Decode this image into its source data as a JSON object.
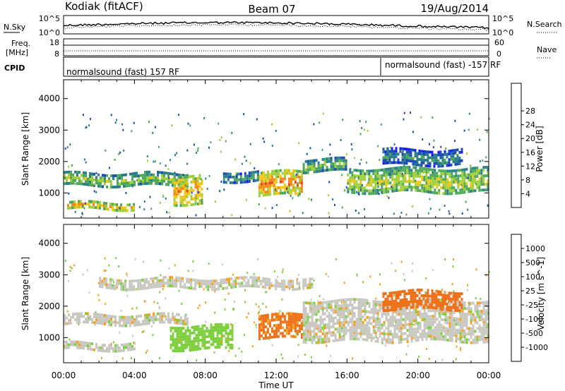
{
  "header": {
    "station": "Kodiak (fitACF)",
    "beam": "Beam 07",
    "date": "19/Aug/2014"
  },
  "top_panels": {
    "nsky_label": "N.Sky",
    "nsky_ticks": [
      "10^5",
      "10^0"
    ],
    "nsearch_label": "N.Search",
    "freq_label_1": "Freq.",
    "freq_label_2": "[MHz]",
    "freq_ticks": [
      "18",
      "8"
    ],
    "nave_label": "Nave",
    "nave_ticks": [
      "60",
      "0"
    ],
    "cpid_label": "CPID",
    "cpid_segments": [
      {
        "text": "normalsound (fast) 157 RF",
        "start_hour": 0
      },
      {
        "text": "normalsound (fast) -157 RF",
        "start_hour": 17.9
      }
    ]
  },
  "chart_data": [
    {
      "type": "heatmap",
      "title": "",
      "ylabel": "Slant Range [km]",
      "xlabel": "",
      "xlim": [
        0,
        24
      ],
      "ylim": [
        200,
        4600
      ],
      "y_ticks": [
        "1000",
        "2000",
        "3000",
        "4000"
      ],
      "colorbar_label": "Power [dB]",
      "colorbar_ticks": [
        "4",
        "8",
        "12",
        "16",
        "20",
        "24",
        "28"
      ],
      "colorbar_colors": [
        "#1a1aff",
        "#1f4bb8",
        "#2a7f8a",
        "#4da85a",
        "#9fcf3a",
        "#f5c518",
        "#f08b1a",
        "#e8461a",
        "#e01010"
      ],
      "bands": [
        {
          "t0": 0.2,
          "t1": 4.0,
          "r": [
            520,
            720
          ],
          "value": 24
        },
        {
          "t0": 0.0,
          "t1": 7.0,
          "r": [
            1250,
            1650
          ],
          "value": 18
        },
        {
          "t0": 6.2,
          "t1": 7.8,
          "r": [
            700,
            1600
          ],
          "value": 25
        },
        {
          "t0": 11.0,
          "t1": 13.5,
          "r": [
            950,
            1700
          ],
          "value": 26
        },
        {
          "t0": 9.0,
          "t1": 11.0,
          "r": [
            1400,
            1700
          ],
          "value": 14
        },
        {
          "t0": 13.5,
          "t1": 16.0,
          "r": [
            1700,
            2100
          ],
          "value": 17
        },
        {
          "t0": 16.0,
          "t1": 24.0,
          "r": [
            1000,
            1800
          ],
          "value": 20
        },
        {
          "t0": 18.0,
          "t1": 22.5,
          "r": [
            1900,
            2400
          ],
          "value": 12
        }
      ]
    },
    {
      "type": "heatmap",
      "title": "",
      "ylabel": "Slant Range [km]",
      "xlabel": "Time UT",
      "xlim": [
        0,
        24
      ],
      "ylim": [
        200,
        4600
      ],
      "x_ticks": [
        "00:00",
        "04:00",
        "08:00",
        "12:00",
        "16:00",
        "20:00",
        "00:00"
      ],
      "y_ticks": [
        "1000",
        "2000",
        "3000",
        "4000"
      ],
      "colorbar_label": "Velocity [m s^-1]",
      "colorbar_ticks": [
        "1000",
        "500",
        "100",
        "25",
        "-25",
        "-100",
        "-500",
        "-1000"
      ],
      "colorbar_colors": [
        "#2030c0",
        "#2a7f6a",
        "#3da34a",
        "#7fd040",
        "#c8c8c0",
        "#f5a020",
        "#f07018",
        "#e84010",
        "#e01010"
      ],
      "bands": [
        {
          "t0": 0.0,
          "t1": 7.0,
          "r": [
            1400,
            1750
          ],
          "value": 0
        },
        {
          "t0": 0.0,
          "t1": 4.0,
          "r": [
            600,
            850
          ],
          "value": 0
        },
        {
          "t0": 6.0,
          "t1": 9.5,
          "r": [
            600,
            1400
          ],
          "value": 60
        },
        {
          "t0": 11.0,
          "t1": 13.5,
          "r": [
            1000,
            1750
          ],
          "value": -120
        },
        {
          "t0": 13.5,
          "t1": 24.0,
          "r": [
            900,
            2200
          ],
          "value": 0
        },
        {
          "t0": 18.0,
          "t1": 22.5,
          "r": [
            1900,
            2500
          ],
          "value": -400
        },
        {
          "t0": 2.0,
          "t1": 14.0,
          "r": [
            2600,
            2900
          ],
          "value": 0
        }
      ]
    }
  ]
}
